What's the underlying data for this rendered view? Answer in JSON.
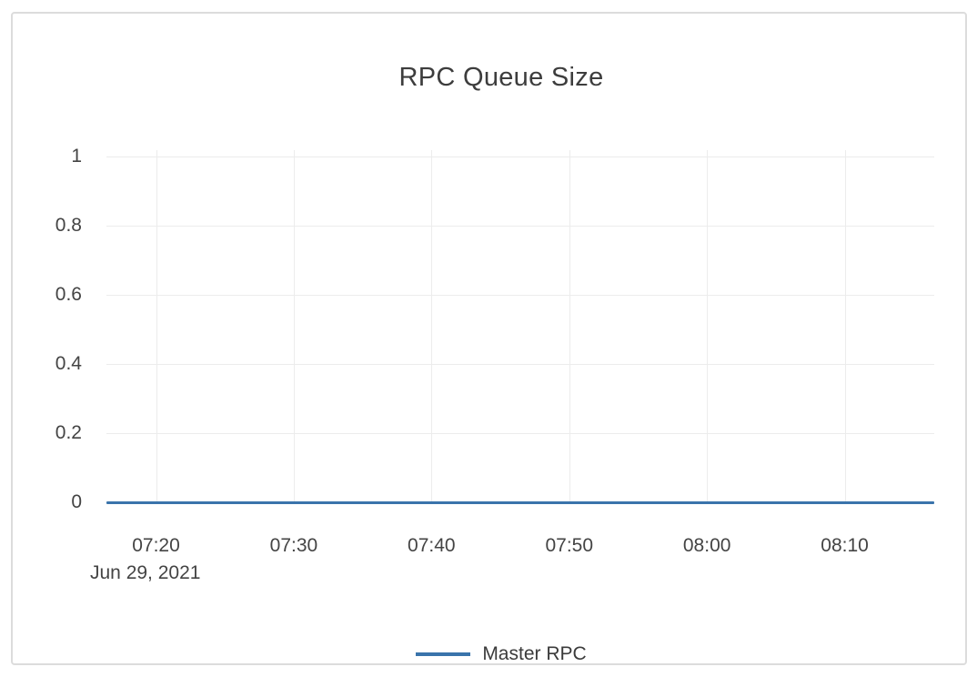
{
  "chart_data": {
    "type": "line",
    "title": "RPC Queue Size",
    "xlabel": "",
    "ylabel": "",
    "x_date_label": "Jun 29, 2021",
    "x_ticks": [
      "07:20",
      "07:30",
      "07:40",
      "07:50",
      "08:00",
      "08:10"
    ],
    "x_range": [
      "07:16",
      "08:17"
    ],
    "x_range_minutes": [
      436.4,
      496.5
    ],
    "y_ticks": [
      0,
      0.2,
      0.4,
      0.6,
      0.8,
      1
    ],
    "ylim": [
      0,
      1
    ],
    "grid": true,
    "legend_position": "bottom-center",
    "series": [
      {
        "name": "Master RPC",
        "color": "#3a74ab",
        "x": [
          "07:16",
          "07:20",
          "07:30",
          "07:40",
          "07:50",
          "08:00",
          "08:10",
          "08:17"
        ],
        "y": [
          0,
          0,
          0,
          0,
          0,
          0,
          0,
          0
        ]
      }
    ]
  },
  "colors": {
    "series_blue": "#3a74ab",
    "grid": "#ececec",
    "axis_text": "#444444",
    "title_text": "#3d3d3d",
    "card_border": "#dcdcdc",
    "background": "#ffffff"
  }
}
